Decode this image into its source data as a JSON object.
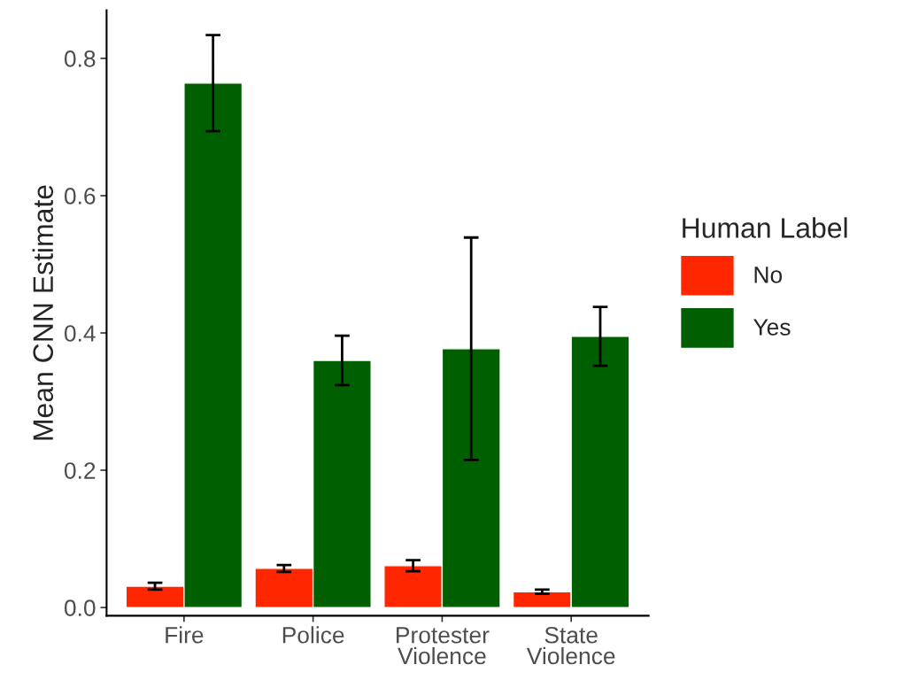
{
  "chart_data": {
    "type": "bar",
    "ylabel": "Mean CNN Estimate",
    "legend_title": "Human Label",
    "categories": [
      "Fire",
      "Police",
      "Protester\nViolence",
      "State\nViolence"
    ],
    "series": [
      {
        "name": "No",
        "color": "#ff2600",
        "values": [
          0.031,
          0.057,
          0.061,
          0.023
        ],
        "errors": [
          0.005,
          0.005,
          0.008,
          0.003
        ]
      },
      {
        "name": "Yes",
        "color": "#005f00",
        "values": [
          0.764,
          0.36,
          0.377,
          0.395
        ],
        "errors": [
          0.07,
          0.036,
          0.162,
          0.043
        ]
      }
    ],
    "ylim": [
      -0.012,
      0.87
    ],
    "yticks": [
      {
        "value": 0,
        "label": "0.0"
      },
      0.2,
      0.4,
      0.6,
      0.8
    ],
    "grid": false,
    "legend": "right"
  }
}
